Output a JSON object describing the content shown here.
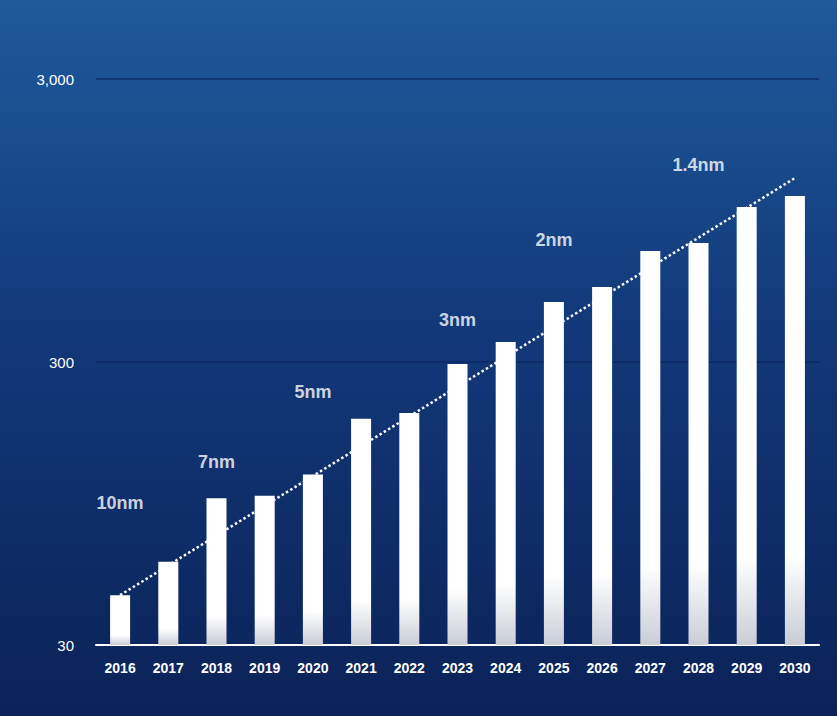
{
  "chart_data": {
    "type": "bar",
    "categories": [
      "2016",
      "2017",
      "2018",
      "2019",
      "2020",
      "2021",
      "2022",
      "2023",
      "2024",
      "2025",
      "2026",
      "2027",
      "2028",
      "2029",
      "2030"
    ],
    "values": [
      45,
      59,
      99,
      101,
      120,
      189,
      198,
      295,
      353,
      489,
      552,
      740,
      790,
      1059,
      1159
    ],
    "color": "#ffffff",
    "log": "y",
    "ylim": [
      30,
      3000
    ],
    "yticks": [
      30,
      300,
      {
        "value": 3000,
        "label": "3,000"
      }
    ],
    "grid": true,
    "trend_line": {
      "x": [
        "2016",
        "2030"
      ],
      "values": [
        45,
        1340
      ]
    },
    "annotations": [
      {
        "text": "10nm",
        "x": "2016",
        "y": 95
      },
      {
        "text": "7nm",
        "x": "2018",
        "y": 133
      },
      {
        "text": "5nm",
        "x": "2020",
        "y": 235
      },
      {
        "text": "3nm",
        "x": "2023",
        "y": 423
      },
      {
        "text": "2nm",
        "x": "2025",
        "y": 810
      },
      {
        "text": "1.4nm",
        "x": "2028",
        "y": 1490
      }
    ]
  }
}
